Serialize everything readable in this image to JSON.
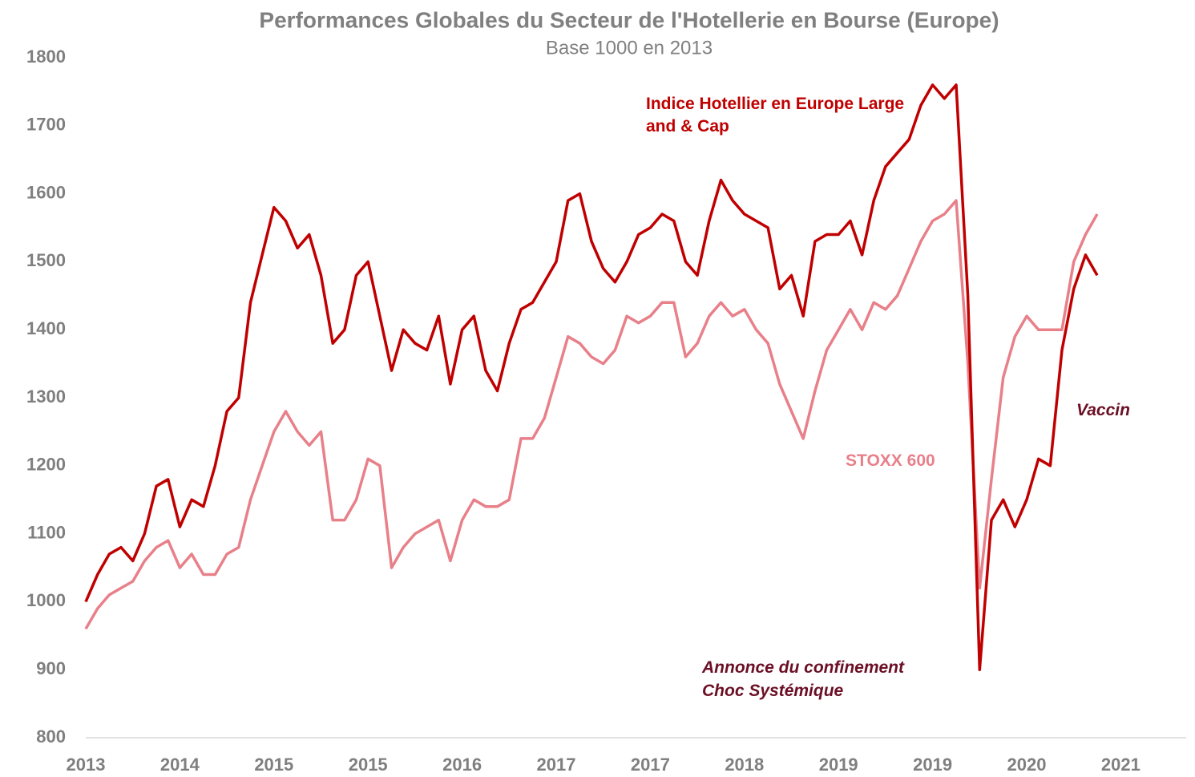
{
  "chart_data": {
    "type": "line",
    "title": "Performances Globales du Secteur de l'Hotellerie en Bourse (Europe)",
    "subtitle": "Base 1000 en 2013",
    "categories": [
      "2013",
      null,
      null,
      null,
      null,
      null,
      null,
      null,
      "2014",
      null,
      null,
      null,
      null,
      null,
      null,
      null,
      "2015",
      null,
      null,
      null,
      null,
      null,
      null,
      null,
      "2015",
      null,
      null,
      null,
      null,
      null,
      null,
      null,
      "2016",
      null,
      null,
      null,
      null,
      null,
      null,
      null,
      "2017",
      null,
      null,
      null,
      null,
      null,
      null,
      null,
      "2017",
      null,
      null,
      null,
      null,
      null,
      null,
      null,
      "2018",
      null,
      null,
      null,
      null,
      null,
      null,
      null,
      "2019",
      null,
      null,
      null,
      null,
      null,
      null,
      null,
      "2019",
      null,
      null,
      null,
      null,
      null,
      null,
      null,
      "2020",
      null,
      null,
      null,
      null,
      null,
      null,
      null,
      "2021"
    ],
    "series": [
      {
        "name": "STOXX 600",
        "color": "#e8808a",
        "values": [
          960,
          990,
          1010,
          1020,
          1030,
          1060,
          1080,
          1090,
          1050,
          1070,
          1040,
          1040,
          1070,
          1080,
          1150,
          1200,
          1250,
          1280,
          1250,
          1230,
          1250,
          1120,
          1120,
          1150,
          1210,
          1200,
          1050,
          1080,
          1100,
          1110,
          1120,
          1060,
          1120,
          1150,
          1140,
          1140,
          1150,
          1240,
          1240,
          1270,
          1330,
          1390,
          1380,
          1360,
          1350,
          1370,
          1420,
          1410,
          1420,
          1440,
          1440,
          1360,
          1380,
          1420,
          1440,
          1420,
          1430,
          1400,
          1380,
          1320,
          1280,
          1240,
          1310,
          1370,
          1400,
          1430,
          1400,
          1440,
          1430,
          1450,
          1490,
          1530,
          1560,
          1570,
          1590,
          1350,
          1020,
          1180,
          1330,
          1390,
          1420,
          1400,
          1400,
          1400,
          1500,
          1540,
          1570,
          null,
          null
        ]
      },
      {
        "name": "Indice Hotellier en Europe Large and & Cap",
        "color": "#c00000",
        "values": [
          1000,
          1040,
          1070,
          1080,
          1060,
          1100,
          1170,
          1180,
          1110,
          1150,
          1140,
          1200,
          1280,
          1300,
          1440,
          1510,
          1580,
          1560,
          1520,
          1540,
          1480,
          1380,
          1400,
          1480,
          1500,
          1420,
          1340,
          1400,
          1380,
          1370,
          1420,
          1320,
          1400,
          1420,
          1340,
          1310,
          1380,
          1430,
          1440,
          1470,
          1500,
          1590,
          1600,
          1530,
          1490,
          1470,
          1500,
          1540,
          1550,
          1570,
          1560,
          1500,
          1480,
          1560,
          1620,
          1590,
          1570,
          1560,
          1550,
          1460,
          1480,
          1420,
          1530,
          1540,
          1540,
          1560,
          1510,
          1590,
          1640,
          1660,
          1680,
          1730,
          1760,
          1740,
          1760,
          1450,
          900,
          1120,
          1150,
          1110,
          1150,
          1210,
          1200,
          1370,
          1460,
          1510,
          1480,
          null,
          null
        ]
      }
    ],
    "annotations": [
      "Annonce du confinement",
      "Choc Systémique",
      "Vaccin"
    ],
    "ylim": [
      800,
      1800
    ],
    "yticks": [
      800,
      900,
      1000,
      1100,
      1200,
      1300,
      1400,
      1500,
      1600,
      1700,
      1800
    ]
  }
}
